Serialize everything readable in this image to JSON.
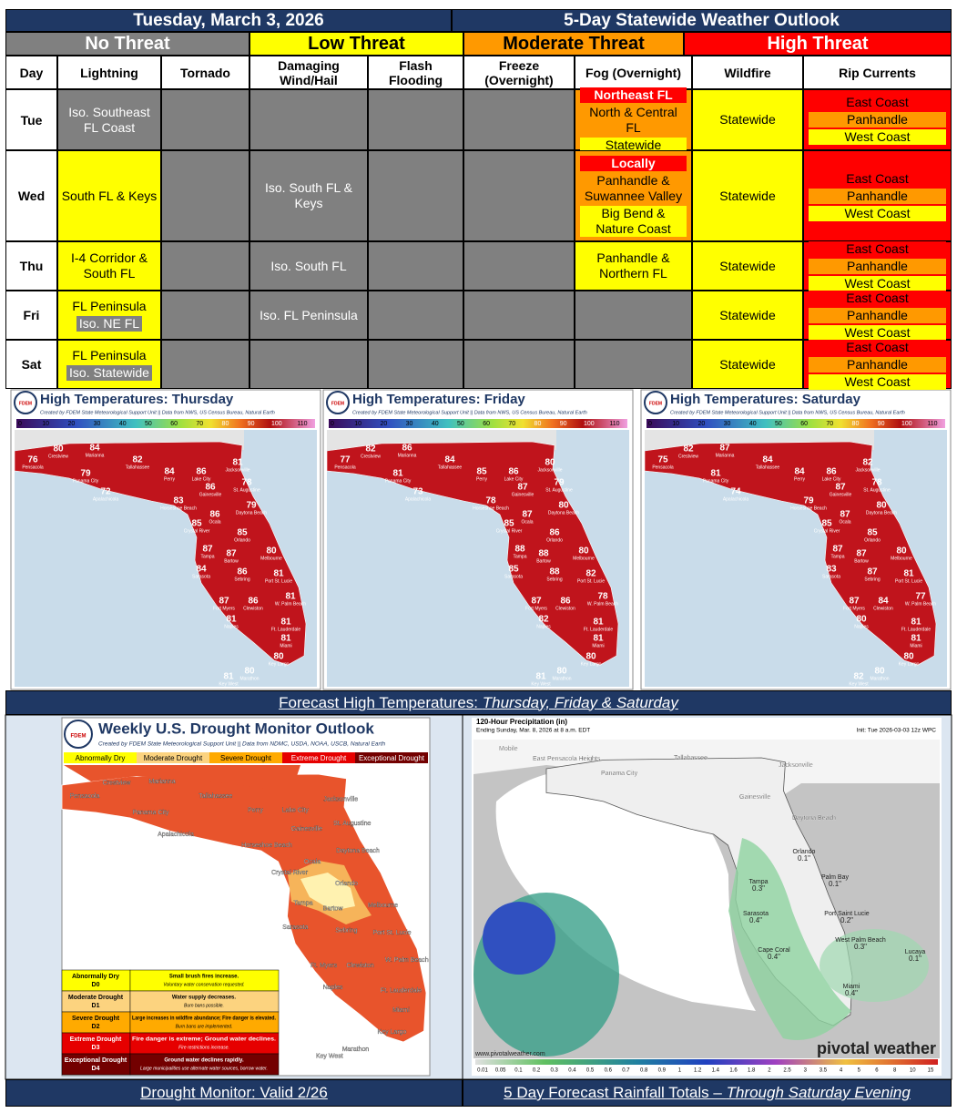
{
  "header": {
    "date": "Tuesday, March 3, 2026",
    "title": "5-Day Statewide Weather Outlook"
  },
  "threat_levels": [
    {
      "label": "No Threat",
      "color": "#808080",
      "text_color": "#ffffff"
    },
    {
      "label": "Low Threat",
      "color": "#ffff00",
      "text_color": "#000000"
    },
    {
      "label": "Moderate Threat",
      "color": "#ff9900",
      "text_color": "#000000"
    },
    {
      "label": "High Threat",
      "color": "#ff0000",
      "text_color": "#ffffff"
    }
  ],
  "table": {
    "columns": [
      "Day",
      "Lightning",
      "Tornado",
      "Damaging Wind/Hail",
      "Flash Flooding",
      "Freeze (Overnight)",
      "Fog (Overnight)",
      "Wildfire",
      "Rip Currents"
    ],
    "rows": [
      {
        "day": "Tue",
        "cells": [
          {
            "level": 0,
            "items": [
              {
                "text": "Iso. Southeast FL Coast",
                "level": 0
              }
            ]
          },
          {
            "level": 0,
            "items": []
          },
          {
            "level": 0,
            "items": []
          },
          {
            "level": 0,
            "items": []
          },
          {
            "level": 0,
            "items": []
          },
          {
            "level": 2,
            "items": [
              {
                "text": "Northeast FL",
                "level": 3
              },
              {
                "text": "North & Central FL",
                "level": 2
              },
              {
                "text": "Statewide",
                "level": 1
              }
            ]
          },
          {
            "level": 1,
            "items": [
              {
                "text": "Statewide",
                "level": 1
              }
            ]
          },
          {
            "level": 3,
            "items": [
              {
                "text": "East Coast",
                "level": 3
              },
              {
                "text": "Panhandle",
                "level": 2
              },
              {
                "text": "West Coast",
                "level": 1
              }
            ]
          }
        ]
      },
      {
        "day": "Wed",
        "cells": [
          {
            "level": 1,
            "items": [
              {
                "text": "South FL & Keys",
                "level": 1
              }
            ]
          },
          {
            "level": 0,
            "items": []
          },
          {
            "level": 0,
            "items": [
              {
                "text": "Iso. South FL & Keys",
                "level": 0
              }
            ]
          },
          {
            "level": 0,
            "items": []
          },
          {
            "level": 0,
            "items": []
          },
          {
            "level": 2,
            "items": [
              {
                "text": "Locally",
                "level": 3
              },
              {
                "text": "Panhandle & Suwannee Valley",
                "level": 2
              },
              {
                "text": "Big Bend & Nature Coast",
                "level": 1
              }
            ]
          },
          {
            "level": 1,
            "items": [
              {
                "text": "Statewide",
                "level": 1
              }
            ]
          },
          {
            "level": 3,
            "items": [
              {
                "text": "East Coast",
                "level": 3
              },
              {
                "text": "Panhandle",
                "level": 2
              },
              {
                "text": "West Coast",
                "level": 1
              }
            ]
          }
        ]
      },
      {
        "day": "Thu",
        "cells": [
          {
            "level": 1,
            "items": [
              {
                "text": "I-4 Corridor & South FL",
                "level": 1
              }
            ]
          },
          {
            "level": 0,
            "items": []
          },
          {
            "level": 0,
            "items": [
              {
                "text": "Iso. South FL",
                "level": 0
              }
            ]
          },
          {
            "level": 0,
            "items": []
          },
          {
            "level": 0,
            "items": []
          },
          {
            "level": 1,
            "items": [
              {
                "text": "Panhandle & Northern FL",
                "level": 1
              }
            ]
          },
          {
            "level": 1,
            "items": [
              {
                "text": "Statewide",
                "level": 1
              }
            ]
          },
          {
            "level": 3,
            "items": [
              {
                "text": "East Coast",
                "level": 3
              },
              {
                "text": "Panhandle",
                "level": 2
              },
              {
                "text": "West Coast",
                "level": 1
              }
            ]
          }
        ]
      },
      {
        "day": "Fri",
        "cells": [
          {
            "level": 1,
            "items": [
              {
                "text": "FL Peninsula",
                "level": 1
              },
              {
                "text": "Iso. NE FL",
                "level": 0
              }
            ]
          },
          {
            "level": 0,
            "items": []
          },
          {
            "level": 0,
            "items": [
              {
                "text": "Iso. FL Peninsula",
                "level": 0
              }
            ]
          },
          {
            "level": 0,
            "items": []
          },
          {
            "level": 0,
            "items": []
          },
          {
            "level": 0,
            "items": []
          },
          {
            "level": 1,
            "items": [
              {
                "text": "Statewide",
                "level": 1
              }
            ]
          },
          {
            "level": 3,
            "items": [
              {
                "text": "East Coast",
                "level": 3
              },
              {
                "text": "Panhandle",
                "level": 2
              },
              {
                "text": "West Coast",
                "level": 1
              }
            ]
          }
        ]
      },
      {
        "day": "Sat",
        "cells": [
          {
            "level": 1,
            "items": [
              {
                "text": "FL Peninsula",
                "level": 1
              },
              {
                "text": "Iso. Statewide",
                "level": 0
              }
            ]
          },
          {
            "level": 0,
            "items": []
          },
          {
            "level": 0,
            "items": []
          },
          {
            "level": 0,
            "items": []
          },
          {
            "level": 0,
            "items": []
          },
          {
            "level": 0,
            "items": []
          },
          {
            "level": 1,
            "items": [
              {
                "text": "Statewide",
                "level": 1
              }
            ]
          },
          {
            "level": 3,
            "items": [
              {
                "text": "East Coast",
                "level": 3
              },
              {
                "text": "Panhandle",
                "level": 2
              },
              {
                "text": "West Coast",
                "level": 1
              }
            ]
          }
        ]
      }
    ]
  },
  "temp_maps": {
    "caption": "Forecast High Temperatures: ",
    "caption_italic": "Thursday, Friday & Saturday",
    "credit": "Created by FDEM State Meteorological Support Unit || Data from NWS, US Census Bureau, Natural Earth",
    "logo": "FDEM",
    "scale": [
      0,
      10,
      20,
      30,
      40,
      50,
      60,
      70,
      80,
      90,
      100,
      110
    ],
    "cities": [
      "Pensacola",
      "Crestview",
      "Marianna",
      "Tallahassee",
      "Panama City",
      "Apalachicola",
      "Perry",
      "Lake City",
      "Jacksonville",
      "Gainesville",
      "St. Augustine",
      "Horseshoe Beach",
      "Ocala",
      "Daytona Beach",
      "Crystal River",
      "Orlando",
      "Melbourne",
      "Tampa",
      "Bartow",
      "Sarasota",
      "Sebring",
      "Port St. Lucie",
      "Fort Myers",
      "Clewiston",
      "W. Palm Beach",
      "Naples",
      "Ft. Lauderdale",
      "Miami",
      "Key Largo",
      "Marathon",
      "Key West"
    ],
    "maps": [
      {
        "title": "High Temperatures: Thursday",
        "temps": [
          76,
          80,
          84,
          82,
          79,
          72,
          84,
          86,
          81,
          86,
          78,
          83,
          86,
          79,
          85,
          85,
          80,
          87,
          87,
          84,
          86,
          81,
          87,
          86,
          81,
          81,
          81,
          81,
          80,
          80,
          81
        ]
      },
      {
        "title": "High Temperatures: Friday",
        "temps": [
          77,
          82,
          86,
          84,
          81,
          73,
          85,
          86,
          80,
          87,
          79,
          78,
          87,
          80,
          85,
          86,
          80,
          88,
          88,
          85,
          88,
          82,
          87,
          86,
          78,
          82,
          81,
          81,
          80,
          80,
          81
        ]
      },
      {
        "title": "High Temperatures: Saturday",
        "temps": [
          75,
          82,
          87,
          84,
          81,
          74,
          84,
          86,
          82,
          87,
          78,
          79,
          87,
          80,
          85,
          85,
          80,
          87,
          87,
          83,
          87,
          81,
          87,
          84,
          77,
          80,
          81,
          81,
          80,
          80,
          82
        ]
      }
    ]
  },
  "drought": {
    "title": "Weekly U.S. Drought Monitor Outlook",
    "credit": "Created by FDEM State Meteorological Support Unit || Data from NDMC, USDA, NOAA, USCB, Natural Earth",
    "caption": "Drought Monitor: Valid 2/26",
    "categories": [
      {
        "name": "Abnormally Dry",
        "code": "D0",
        "color": "#ffff00",
        "impact": "Small brush fires increase.",
        "note": "Voluntary water conservation requested."
      },
      {
        "name": "Moderate Drought",
        "code": "D1",
        "color": "#fcd37f",
        "impact": "Water supply decreases.",
        "note": "Burn bans possible."
      },
      {
        "name": "Severe Drought",
        "code": "D2",
        "color": "#ffaa00",
        "impact": "Large increases in wildfire abundance; Fire danger is elevated.",
        "note": "Burn bans are implemented."
      },
      {
        "name": "Extreme Drought",
        "code": "D3",
        "color": "#e60000",
        "impact": "Fire danger is extreme; Ground water declines.",
        "note": "Fire restrictions increase."
      },
      {
        "name": "Exceptional Drought",
        "code": "D4",
        "color": "#730000",
        "impact": "Ground water declines rapidly.",
        "note": "Large municipalities use alternate water sources, borrow water."
      }
    ],
    "cities": [
      "Pensacola",
      "Crestview",
      "Marianna",
      "Tallahassee",
      "Panama City",
      "Apalachicola",
      "Perry",
      "Lake City",
      "Jacksonville",
      "Gainesville",
      "St. Augustine",
      "Horseshoe Beach",
      "Ocala",
      "Daytona Beach",
      "Crystal River",
      "Orlando",
      "Melbourne",
      "Tampa",
      "Bartow",
      "Sarasota",
      "Sebring",
      "Port St. Lucie",
      "Ft. Myers",
      "Clewiston",
      "W. Palm Beach",
      "Naples",
      "Ft. Lauderdale",
      "Miami",
      "Key Largo",
      "Marathon",
      "Key West"
    ]
  },
  "rain": {
    "title": "120-Hour Precipitation (in)",
    "valid": "Ending Sunday, Mar. 8, 2026 at 8 a.m. EDT",
    "init": "Init: Tue 2026-03-03 12z WPC",
    "site": "www.pivotalweather.com",
    "brand": "pivotal weather",
    "caption": "5 Day Forecast Rainfall Totals – ",
    "caption_italic": "Through Saturday Evening",
    "places": [
      "Mobile",
      "East Pensacola Heights",
      "Panama City",
      "Tallahassee",
      "Jacksonville",
      "Gainesville",
      "Daytona Beach"
    ],
    "amounts": [
      {
        "name": "Orlando",
        "value": 0.1,
        "label": "0.1\""
      },
      {
        "name": "Palm Bay",
        "value": 0.1,
        "label": "0.1\""
      },
      {
        "name": "Tampa",
        "value": 0.3,
        "label": "0.3\""
      },
      {
        "name": "Sarasota",
        "value": 0.4,
        "label": "0.4\""
      },
      {
        "name": "Port Saint Lucie",
        "value": 0.2,
        "label": "0.2\""
      },
      {
        "name": "West Palm Beach",
        "value": 0.3,
        "label": "0.3\""
      },
      {
        "name": "Cape Coral",
        "value": 0.4,
        "label": "0.4\""
      },
      {
        "name": "Miami",
        "value": 0.4,
        "label": "0.4\""
      },
      {
        "name": "Lucaya",
        "value": 0.1,
        "label": "0.1\""
      }
    ],
    "scale": [
      0.01,
      0.05,
      0.1,
      0.2,
      0.3,
      0.4,
      0.5,
      0.6,
      0.7,
      0.8,
      0.9,
      1,
      1.2,
      1.4,
      1.6,
      1.8,
      2,
      2.5,
      3,
      3.5,
      4,
      5,
      6,
      8,
      10,
      15
    ]
  }
}
